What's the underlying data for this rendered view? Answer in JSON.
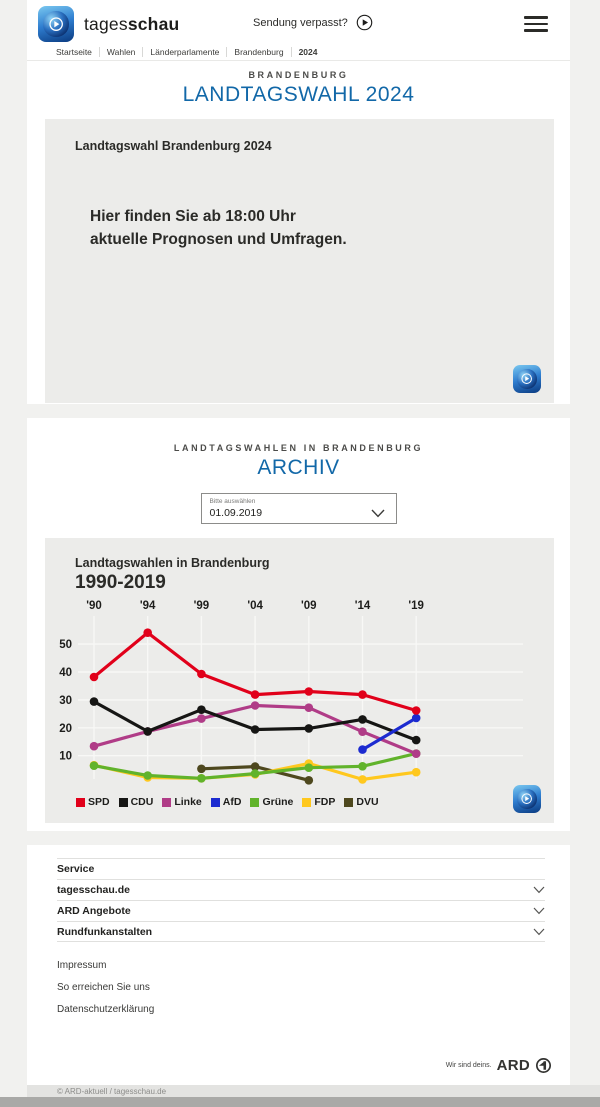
{
  "header": {
    "brand_regular": "tages",
    "brand_bold": "schau",
    "sendung_verpasst": "Sendung verpasst?"
  },
  "breadcrumb": [
    "Startseite",
    "Wahlen",
    "Länderparlamente",
    "Brandenburg",
    "2024"
  ],
  "hero": {
    "kicker": "BRANDENBURG",
    "title": "LANDTAGSWAHL 2024",
    "card_title": "Landtagswahl Brandenburg 2024",
    "message_line1": "Hier finden Sie ab 18:00 Uhr",
    "message_line2": "aktuelle Prognosen und Umfragen."
  },
  "archive": {
    "kicker": "LANDTAGSWAHLEN IN BRANDENBURG",
    "title": "ARCHIV",
    "select_label": "Bitte auswählen",
    "select_value": "01.09.2019"
  },
  "chart_card": {
    "title": "Landtagswahlen in Brandenburg",
    "subtitle": "1990-2019"
  },
  "chart_data": {
    "type": "line",
    "title": "Landtagswahlen in Brandenburg 1990-2019",
    "unit": "percent",
    "x_years": [
      1990,
      1994,
      1999,
      2004,
      2009,
      2014,
      2019
    ],
    "x_tick_labels": [
      "'90",
      "'94",
      "'99",
      "'04",
      "'09",
      "'14",
      "'19"
    ],
    "y_ticks": [
      10,
      20,
      30,
      40,
      50
    ],
    "ylim": [
      0,
      58
    ],
    "grid": true,
    "legend_position": "bottom",
    "series": [
      {
        "name": "SPD",
        "color": "#e1001a",
        "values": [
          38.2,
          54.1,
          39.3,
          31.9,
          33.0,
          31.9,
          26.2
        ]
      },
      {
        "name": "CDU",
        "color": "#161614",
        "values": [
          29.4,
          18.7,
          26.5,
          19.4,
          19.8,
          23.0,
          15.6
        ]
      },
      {
        "name": "Linke",
        "color": "#b03c87",
        "values": [
          13.4,
          18.7,
          23.3,
          28.0,
          27.2,
          18.6,
          10.7
        ]
      },
      {
        "name": "AfD",
        "color": "#1c2bd0",
        "values": [
          null,
          null,
          null,
          null,
          null,
          12.2,
          23.5
        ]
      },
      {
        "name": "Grüne",
        "color": "#61b32b",
        "values": [
          6.4,
          2.9,
          1.9,
          3.6,
          5.7,
          6.2,
          10.8
        ]
      },
      {
        "name": "FDP",
        "color": "#ffc81e",
        "values": [
          6.6,
          2.2,
          1.9,
          3.3,
          7.2,
          1.5,
          4.1
        ]
      },
      {
        "name": "DVU",
        "color": "#4e481e",
        "values": [
          null,
          null,
          5.3,
          6.1,
          1.2,
          null,
          null
        ]
      }
    ]
  },
  "footer": {
    "accordion": [
      "Service",
      "tagesschau.de",
      "ARD Angebote",
      "Rundfunkanstalten"
    ],
    "links": [
      "Impressum",
      "So erreichen Sie uns",
      "Datenschutzerklärung"
    ],
    "brand_claim": "Wir sind deins.",
    "brand_name": "ARD",
    "copyright": "© ARD-aktuell / tagesschau.de"
  },
  "colors": {
    "headline_blue": "#1268a8",
    "card_gray": "#ececea",
    "page_background": "#f1f1ef"
  }
}
